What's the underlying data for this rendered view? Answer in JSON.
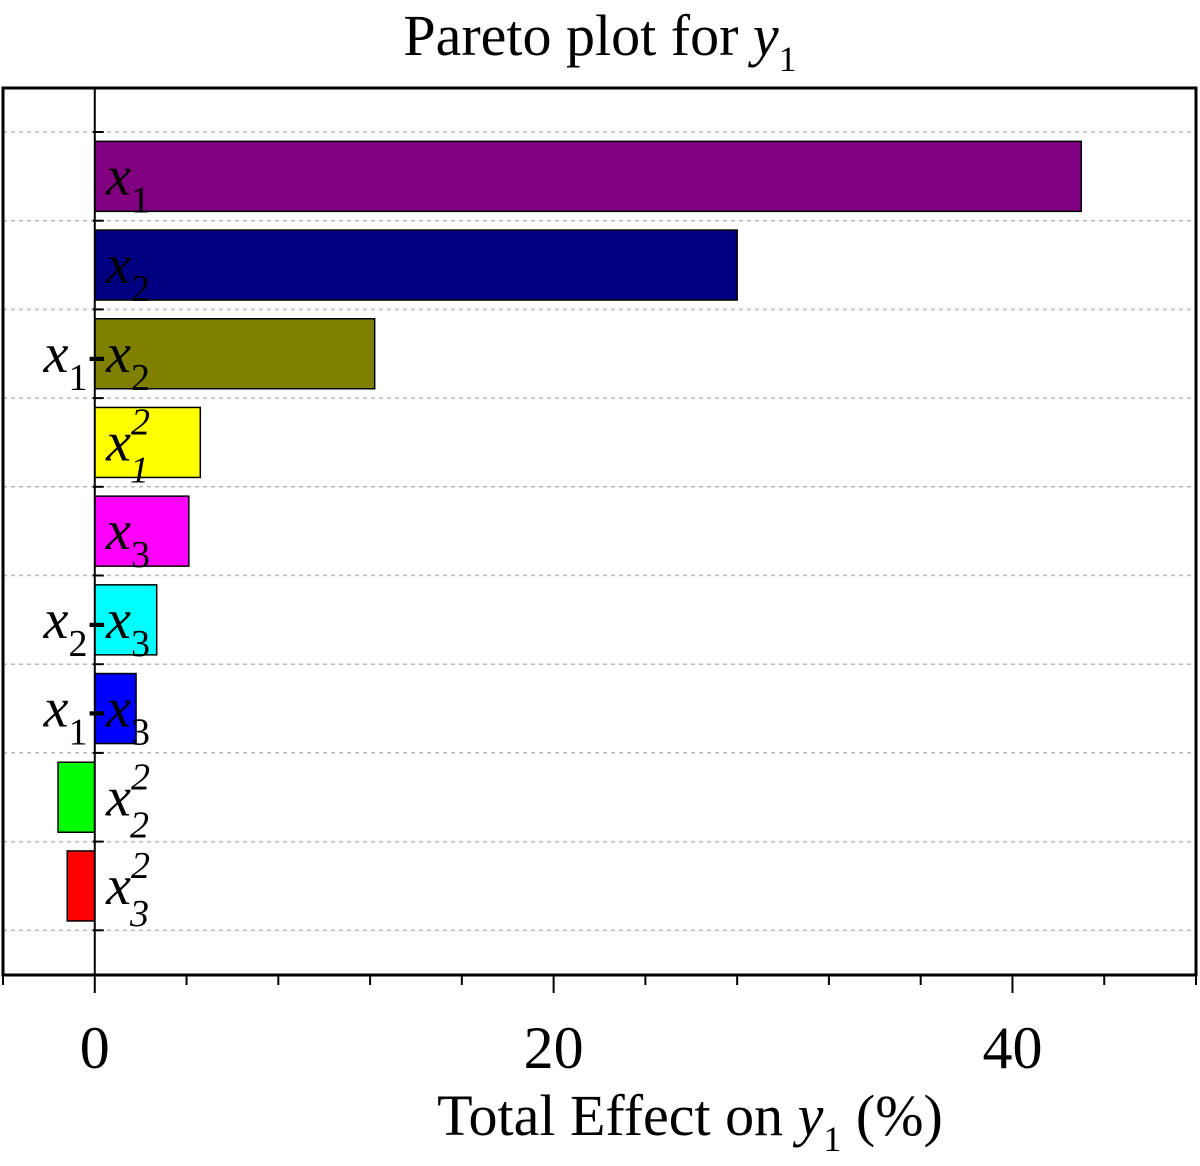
{
  "chart_data": {
    "type": "bar",
    "orientation": "horizontal",
    "title": {
      "prefix": "Pareto plot for ",
      "var": "y",
      "sub": "1"
    },
    "xlabel": {
      "prefix": "Total Effect on ",
      "var": "y",
      "sub": "1",
      "suffix": "  (%)"
    },
    "ylabel": "",
    "xlim": [
      -4,
      48
    ],
    "xticks": [
      0,
      20,
      40
    ],
    "xtick_labels": [
      "0",
      "20",
      "40"
    ],
    "minor_xtick_step": 4,
    "grid": "horizontal dashed",
    "categories": [
      {
        "base": "x",
        "sub": "1",
        "sup": "",
        "base2": "",
        "sub2": ""
      },
      {
        "base": "x",
        "sub": "2",
        "sup": "",
        "base2": "",
        "sub2": ""
      },
      {
        "base": "x",
        "sub": "1",
        "sup": "",
        "base2": "-x",
        "sub2": "2"
      },
      {
        "base": "x",
        "sub": "1",
        "sup": "2",
        "base2": "",
        "sub2": ""
      },
      {
        "base": "x",
        "sub": "3",
        "sup": "",
        "base2": "",
        "sub2": ""
      },
      {
        "base": "x",
        "sub": "2",
        "sup": "",
        "base2": "-x",
        "sub2": "3"
      },
      {
        "base": "x",
        "sub": "1",
        "sup": "",
        "base2": "-x",
        "sub2": "3"
      },
      {
        "base": "x",
        "sub": "2",
        "sup": "2",
        "base2": "",
        "sub2": ""
      },
      {
        "base": "x",
        "sub": "3",
        "sup": "2",
        "base2": "",
        "sub2": ""
      }
    ],
    "values": [
      43.0,
      28.0,
      12.2,
      4.6,
      4.1,
      2.7,
      1.8,
      -1.6,
      -1.2
    ],
    "colors": [
      "#800080",
      "#000080",
      "#808000",
      "#ffff00",
      "#ff00ff",
      "#00ffff",
      "#0000ff",
      "#00ff00",
      "#ff0000"
    ]
  }
}
